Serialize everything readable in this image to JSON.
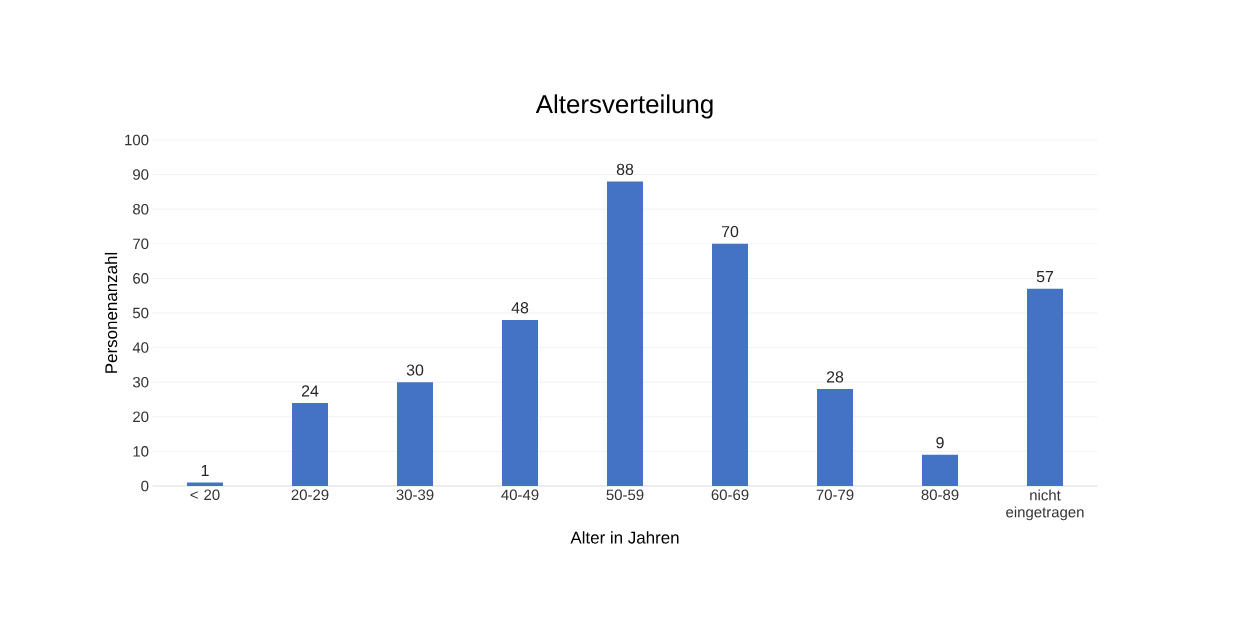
{
  "chart_data": {
    "type": "bar",
    "title": "Altersverteilung",
    "xlabel": "Alter in Jahren",
    "ylabel": "Personenanzahl",
    "categories": [
      "< 20",
      "20-29",
      "30-39",
      "40-49",
      "50-59",
      "60-69",
      "70-79",
      "80-89",
      "nicht eingetragen"
    ],
    "values": [
      1,
      24,
      30,
      48,
      88,
      70,
      28,
      9,
      57
    ],
    "color": "#4472c4",
    "ylim": [
      0,
      100
    ],
    "yticks": [
      0,
      10,
      20,
      30,
      40,
      50,
      60,
      70,
      80,
      90,
      100
    ],
    "grid": "y",
    "data_labels": true
  }
}
